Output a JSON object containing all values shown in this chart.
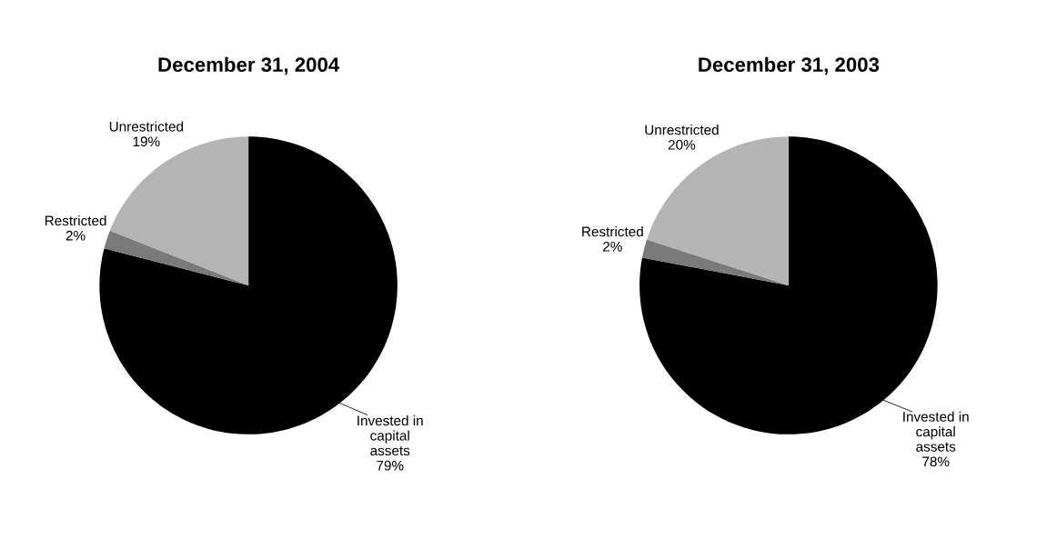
{
  "chart_data": [
    {
      "type": "pie",
      "title": "December 31, 2004",
      "categories": [
        "Invested in\ncapital\nassets",
        "Restricted",
        "Unrestricted"
      ],
      "values": [
        79,
        2,
        19
      ],
      "value_labels": [
        "79%",
        "2%",
        "19%"
      ],
      "colors": [
        "#000000",
        "#7a7a7a",
        "#b4b4b4"
      ]
    },
    {
      "type": "pie",
      "title": "December 31, 2003",
      "categories": [
        "Invested in\ncapital\nassets",
        "Restricted",
        "Unrestricted"
      ],
      "values": [
        78,
        2,
        20
      ],
      "value_labels": [
        "78%",
        "2%",
        "20%"
      ],
      "colors": [
        "#000000",
        "#7a7a7a",
        "#b4b4b4"
      ]
    }
  ]
}
